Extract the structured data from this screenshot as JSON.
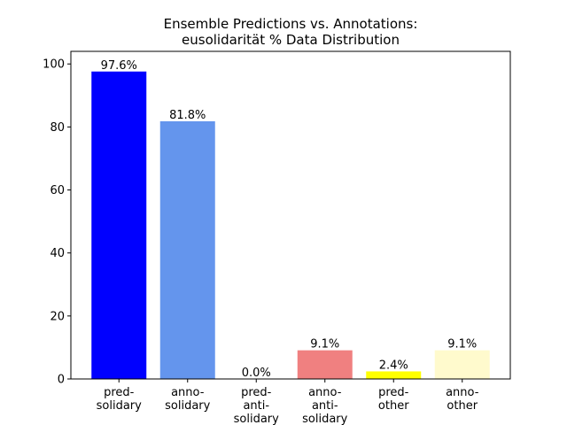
{
  "chart_data": {
    "type": "bar",
    "title_lines": [
      "Ensemble Predictions vs. Annotations:",
      "eusolidarität % Data Distribution"
    ],
    "xlabel": "",
    "ylabel": "",
    "ylim": [
      0,
      104
    ],
    "yticks": [
      0,
      20,
      40,
      60,
      80,
      100
    ],
    "grid": false,
    "categories": [
      [
        "pred-",
        "solidary"
      ],
      [
        "anno-",
        "solidary"
      ],
      [
        "pred-",
        "anti-",
        "solidary"
      ],
      [
        "anno-",
        "anti-",
        "solidary"
      ],
      [
        "pred-",
        "other"
      ],
      [
        "anno-",
        "other"
      ]
    ],
    "values": [
      97.6,
      81.8,
      0.0,
      9.1,
      2.4,
      9.1
    ],
    "value_labels": [
      "97.6%",
      "81.8%",
      "0.0%",
      "9.1%",
      "2.4%",
      "9.1%"
    ],
    "colors": [
      "#0000ff",
      "#6495ed",
      "#8b0000",
      "#f08080",
      "#ffff00",
      "#fffacd"
    ]
  }
}
